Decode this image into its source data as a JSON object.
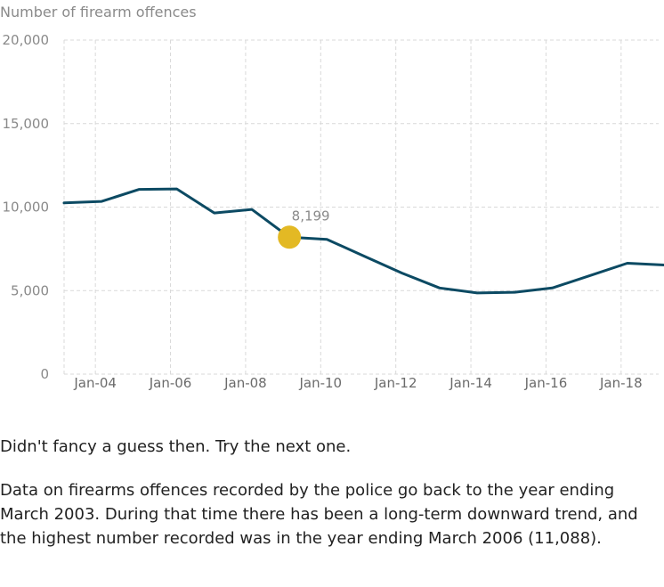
{
  "feedback": "Didn't fancy a guess then. Try the next one.",
  "explanation": "Data on firearms offences recorded by the police go back to the year ending March 2003. During that time there has been a long-term downward trend, and the highest number recorded was in the year ending March 2006 (11,088).",
  "colors": {
    "line": "#0c4a63",
    "marker": "#e3b924",
    "grid": "#d9d9d9",
    "tick_label": "#8a8a8a"
  },
  "chart_data": {
    "type": "line",
    "title": "",
    "ylabel": "Number of firearm offences",
    "xlabel": "",
    "ylim": [
      0,
      20000
    ],
    "yticks": [
      0,
      5000,
      10000,
      15000,
      20000
    ],
    "ytick_labels": [
      "0",
      "5,000",
      "10,000",
      "15,000",
      "20,000"
    ],
    "xticks": [
      "2004-01",
      "2006-01",
      "2008-01",
      "2010-01",
      "2012-01",
      "2014-01",
      "2016-01",
      "2018-01"
    ],
    "xtick_labels": [
      "Jan-04",
      "Jan-06",
      "Jan-08",
      "Jan-10",
      "Jan-12",
      "Jan-14",
      "Jan-16",
      "Jan-18"
    ],
    "xlim": [
      "2003-03",
      "2019-01"
    ],
    "grid": true,
    "series": [
      {
        "x": [
          "2003-03",
          "2004-03",
          "2005-03",
          "2006-03",
          "2007-03",
          "2008-03",
          "2009-03",
          "2010-03",
          "2011-03",
          "2012-03",
          "2013-03",
          "2014-03",
          "2015-03",
          "2016-03",
          "2017-03",
          "2018-03",
          "2019-03"
        ],
        "y": [
          10250,
          10340,
          11060,
          11088,
          9650,
          9860,
          8199,
          8070,
          7050,
          6050,
          5160,
          4860,
          4900,
          5160,
          5900,
          6640,
          6530
        ]
      }
    ],
    "highlight": {
      "x": "2009-03",
      "y": 8199,
      "label": "8,199"
    }
  }
}
